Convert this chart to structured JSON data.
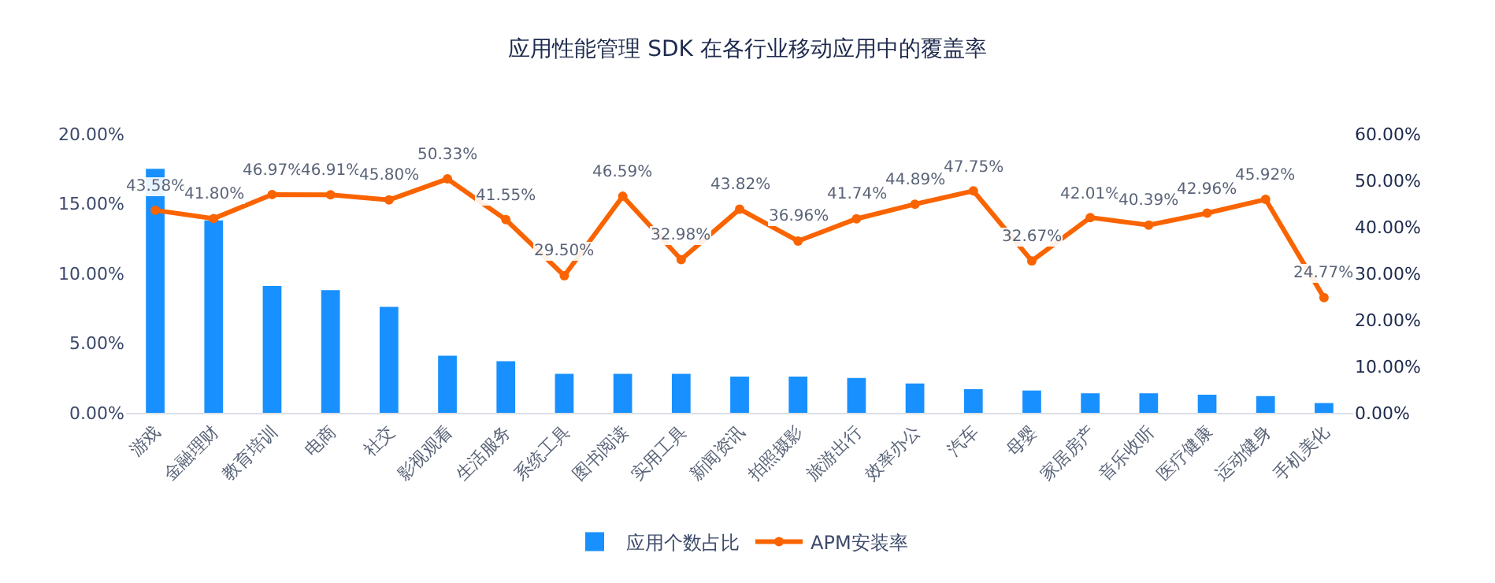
{
  "chart_data": {
    "type": "bar",
    "title": "应用性能管理 SDK 在各行业移动应用中的覆盖率",
    "categories": [
      "游戏",
      "金融理财",
      "教育培训",
      "电商",
      "社交",
      "影视观看",
      "生活服务",
      "系统工具",
      "图书阅读",
      "实用工具",
      "新闻资讯",
      "拍照摄影",
      "旅游出行",
      "效率办公",
      "汽车",
      "母婴",
      "家居房产",
      "音乐收听",
      "医疗健康",
      "运动健身",
      "手机美化"
    ],
    "series": [
      {
        "name": "应用个数占比",
        "color": "#1890ff",
        "values": [
          17.5,
          13.8,
          9.1,
          8.8,
          7.6,
          4.1,
          3.7,
          2.8,
          2.8,
          2.8,
          2.6,
          2.6,
          2.5,
          2.1,
          1.7,
          1.6,
          1.4,
          1.4,
          1.3,
          1.2,
          0.7
        ]
      },
      {
        "name": "APM安装率",
        "type": "line",
        "axis": "y2",
        "color": "#fa6400",
        "marker": "circle",
        "values": [
          43.58,
          41.8,
          46.97,
          46.91,
          45.8,
          50.33,
          41.55,
          29.5,
          46.59,
          32.98,
          43.82,
          36.96,
          41.74,
          44.89,
          47.75,
          32.67,
          42.01,
          40.39,
          42.96,
          45.92,
          24.77
        ],
        "value_labels": [
          "43.58%",
          "41.80%",
          "46.97%",
          "46.91%",
          "45.80%",
          "50.33%",
          "41.55%",
          "29.50%",
          "46.59%",
          "32.98%",
          "43.82%",
          "36.96%",
          "41.74%",
          "44.89%",
          "47.75%",
          "32.67%",
          "42.01%",
          "40.39%",
          "42.96%",
          "45.92%",
          "24.77%"
        ]
      }
    ],
    "ylim": [
      0,
      20
    ],
    "yticks": [
      {
        "value": 0,
        "label": "0.00%"
      },
      {
        "value": 5,
        "label": "5.00%"
      },
      {
        "value": 10,
        "label": "10.00%"
      },
      {
        "value": 15,
        "label": "15.00%"
      },
      {
        "value": 20,
        "label": "20.00%"
      }
    ],
    "y2lim": [
      0,
      60
    ],
    "y2ticks": [
      {
        "value": 0,
        "label": "0.00%"
      },
      {
        "value": 10,
        "label": "10.00%"
      },
      {
        "value": 20,
        "label": "20.00%"
      },
      {
        "value": 30,
        "label": "30.00%"
      },
      {
        "value": 40,
        "label": "40.00%"
      },
      {
        "value": 50,
        "label": "50.00%"
      },
      {
        "value": 60,
        "label": "60.00%"
      }
    ],
    "grid": false,
    "legend": "bottom"
  }
}
